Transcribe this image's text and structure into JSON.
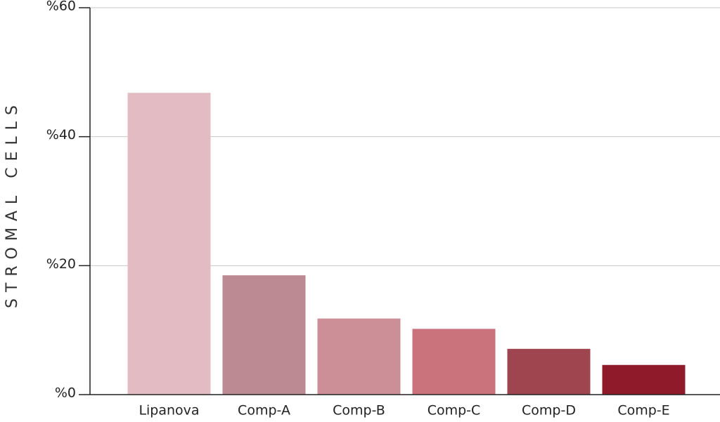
{
  "chart_data": {
    "type": "bar",
    "y_label": "STROMAL CELLS",
    "categories": [
      "Lipanova",
      "Comp-A",
      "Comp-B",
      "Comp-C",
      "Comp-D",
      "Comp-E"
    ],
    "values": [
      46.8,
      18.5,
      11.8,
      10.2,
      7.1,
      4.6
    ],
    "colors": [
      "#e2bcc2",
      "#bc8a92",
      "#cc8f97",
      "#cb737d",
      "#9e4550",
      "#8f1a2a"
    ],
    "ylim": [
      0,
      60
    ],
    "yticks": [
      {
        "value": 0,
        "label": "%0"
      },
      {
        "value": 20,
        "label": "%20"
      },
      {
        "value": 40,
        "label": "%40"
      },
      {
        "value": 60,
        "label": "%60"
      }
    ],
    "grid": true
  }
}
